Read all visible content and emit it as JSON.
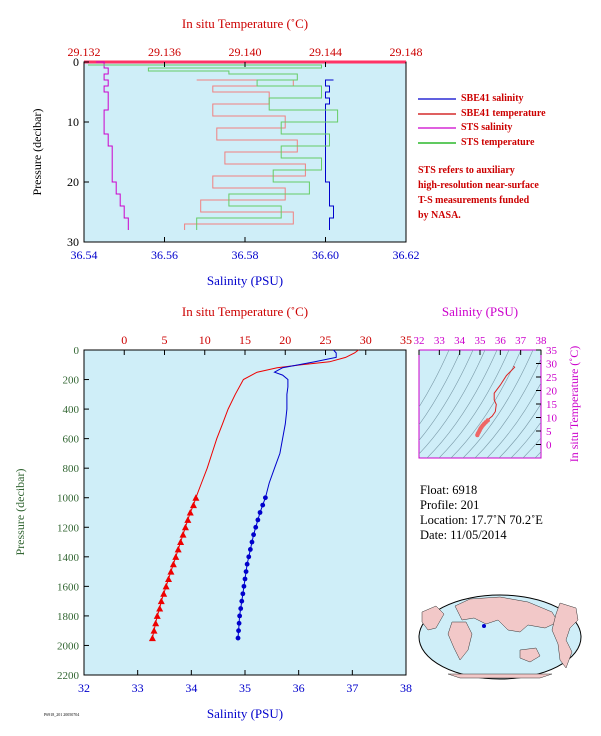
{
  "chart_data": [
    {
      "type": "line",
      "panel": "top-profile",
      "top_axis": {
        "label": "In situ Temperature (˚C)",
        "range": [
          29.132,
          29.148
        ],
        "ticks": [
          "29.132",
          "29.136",
          "29.140",
          "29.144",
          "29.148"
        ]
      },
      "bottom_axis": {
        "label": "Salinity (PSU)",
        "range": [
          36.54,
          36.62
        ],
        "ticks": [
          "36.54",
          "36.56",
          "36.58",
          "36.60",
          "36.62"
        ]
      },
      "y_axis": {
        "label": "Pressure (decibar)",
        "range": [
          0,
          30
        ],
        "reversed": true,
        "ticks": [
          "0",
          "10",
          "20",
          "30"
        ]
      },
      "grid": false,
      "legend_position": "right",
      "series": [
        {
          "name": "SBE41 salinity",
          "color": "#0000cc",
          "x_axis": "bottom",
          "points": [
            [
              36.602,
              3
            ],
            [
              36.6,
              4
            ],
            [
              36.601,
              5
            ],
            [
              36.6,
              6
            ],
            [
              36.601,
              7
            ],
            [
              36.6,
              8
            ],
            [
              36.6,
              10
            ],
            [
              36.6,
              12
            ],
            [
              36.6,
              14
            ],
            [
              36.6,
              16
            ],
            [
              36.6,
              18
            ],
            [
              36.6,
              20
            ],
            [
              36.601,
              22
            ],
            [
              36.601,
              24
            ],
            [
              36.602,
              26
            ],
            [
              36.601,
              28
            ]
          ]
        },
        {
          "name": "SBE41 temperature",
          "color": "#cc0000",
          "x_axis": "top",
          "points": [
            [
              29.1376,
              3
            ],
            [
              29.1424,
              4
            ],
            [
              29.1384,
              5
            ],
            [
              29.1412,
              7
            ],
            [
              29.1384,
              9
            ],
            [
              29.142,
              11
            ],
            [
              29.1386,
              13
            ],
            [
              29.1426,
              15
            ],
            [
              29.139,
              17
            ],
            [
              29.143,
              19
            ],
            [
              29.1384,
              21
            ],
            [
              29.142,
              23
            ],
            [
              29.1378,
              25
            ],
            [
              29.1424,
              27
            ],
            [
              29.137,
              28
            ]
          ]
        },
        {
          "name": "STS salinity",
          "color": "#cc00cc",
          "x_axis": "bottom",
          "points": [
            [
              36.543,
              0
            ],
            [
              36.545,
              1
            ],
            [
              36.546,
              2
            ],
            [
              36.545,
              3
            ],
            [
              36.546,
              4
            ],
            [
              36.545,
              5
            ],
            [
              36.546,
              6
            ],
            [
              36.546,
              8
            ],
            [
              36.545,
              10
            ],
            [
              36.545,
              12
            ],
            [
              36.546,
              14
            ],
            [
              36.547,
              16
            ],
            [
              36.547,
              18
            ],
            [
              36.547,
              20
            ],
            [
              36.548,
              22
            ],
            [
              36.549,
              24
            ],
            [
              36.55,
              26
            ],
            [
              36.551,
              28
            ]
          ]
        },
        {
          "name": "STS temperature",
          "color": "#00aa00",
          "x_axis": "top",
          "points": [
            [
              29.1322,
              0.5
            ],
            [
              29.1438,
              1
            ],
            [
              29.1352,
              1.5
            ],
            [
              29.1392,
              2
            ],
            [
              29.1426,
              3
            ],
            [
              29.1406,
              4
            ],
            [
              29.1438,
              6
            ],
            [
              29.1412,
              8
            ],
            [
              29.1446,
              10
            ],
            [
              29.1418,
              12
            ],
            [
              29.1442,
              14
            ],
            [
              29.1418,
              16
            ],
            [
              29.1438,
              18
            ],
            [
              29.1414,
              20
            ],
            [
              29.1432,
              22
            ],
            [
              29.1392,
              24
            ],
            [
              29.1418,
              26
            ],
            [
              29.1376,
              28
            ]
          ]
        }
      ]
    },
    {
      "type": "line",
      "panel": "full-profile",
      "top_axis": {
        "label": "In situ Temperature (˚C)",
        "range": [
          -5,
          35
        ],
        "ticks": [
          "0",
          "5",
          "10",
          "15",
          "20",
          "25",
          "30",
          "35"
        ]
      },
      "bottom_axis": {
        "label": "Salinity (PSU)",
        "range": [
          32,
          38
        ],
        "ticks": [
          "32",
          "33",
          "34",
          "35",
          "36",
          "37",
          "38"
        ]
      },
      "y_axis": {
        "label": "Pressure (decibar)",
        "range": [
          0,
          2200
        ],
        "reversed": true,
        "ticks": [
          "0",
          "200",
          "400",
          "600",
          "800",
          "1000",
          "1200",
          "1400",
          "1600",
          "1800",
          "2000",
          "2200"
        ]
      },
      "grid": false,
      "series": [
        {
          "name": "Temperature",
          "color": "#ee0000",
          "x_axis": "top",
          "marker": "triangle",
          "points": [
            [
              29.1,
              0
            ],
            [
              28.6,
              20
            ],
            [
              27.5,
              50
            ],
            [
              25.5,
              80
            ],
            [
              22,
              100
            ],
            [
              19,
              120
            ],
            [
              16.5,
              150
            ],
            [
              14.8,
              200
            ],
            [
              13.8,
              300
            ],
            [
              12.9,
              400
            ],
            [
              12.2,
              500
            ],
            [
              11.5,
              600
            ],
            [
              10.9,
              700
            ],
            [
              10.3,
              800
            ],
            [
              9.6,
              900
            ],
            [
              8.9,
              1000
            ],
            [
              8.6,
              1050
            ],
            [
              8.2,
              1100
            ],
            [
              7.9,
              1150
            ],
            [
              7.6,
              1200
            ],
            [
              7.3,
              1250
            ],
            [
              7,
              1300
            ],
            [
              6.7,
              1350
            ],
            [
              6.4,
              1400
            ],
            [
              6.1,
              1450
            ],
            [
              5.8,
              1500
            ],
            [
              5.5,
              1550
            ],
            [
              5.2,
              1600
            ],
            [
              4.9,
              1650
            ],
            [
              4.6,
              1700
            ],
            [
              4.4,
              1750
            ],
            [
              4.1,
              1800
            ],
            [
              3.9,
              1850
            ],
            [
              3.7,
              1900
            ],
            [
              3.5,
              1950
            ]
          ]
        },
        {
          "name": "Salinity",
          "color": "#0000cc",
          "x_axis": "bottom",
          "marker": "circle",
          "points": [
            [
              36.65,
              0
            ],
            [
              36.7,
              20
            ],
            [
              36.7,
              50
            ],
            [
              36.3,
              80
            ],
            [
              36.0,
              100
            ],
            [
              35.7,
              120
            ],
            [
              35.55,
              150
            ],
            [
              35.7,
              170
            ],
            [
              35.8,
              200
            ],
            [
              35.8,
              250
            ],
            [
              35.78,
              300
            ],
            [
              35.78,
              400
            ],
            [
              35.75,
              500
            ],
            [
              35.7,
              600
            ],
            [
              35.65,
              700
            ],
            [
              35.55,
              800
            ],
            [
              35.45,
              900
            ],
            [
              35.38,
              1000
            ],
            [
              35.33,
              1050
            ],
            [
              35.28,
              1100
            ],
            [
              35.24,
              1150
            ],
            [
              35.2,
              1200
            ],
            [
              35.16,
              1250
            ],
            [
              35.13,
              1300
            ],
            [
              35.1,
              1350
            ],
            [
              35.07,
              1400
            ],
            [
              35.04,
              1450
            ],
            [
              35.02,
              1500
            ],
            [
              35,
              1550
            ],
            [
              34.98,
              1600
            ],
            [
              34.96,
              1650
            ],
            [
              34.94,
              1700
            ],
            [
              34.92,
              1750
            ],
            [
              34.9,
              1800
            ],
            [
              34.89,
              1850
            ],
            [
              34.88,
              1900
            ],
            [
              34.87,
              1950
            ]
          ]
        }
      ]
    },
    {
      "type": "scatter",
      "panel": "ts-diagram",
      "top_axis": {
        "label": "Salinity (PSU)",
        "range": [
          32,
          38
        ],
        "ticks": [
          "32",
          "33",
          "34",
          "35",
          "36",
          "37",
          "38"
        ]
      },
      "right_axis": {
        "label": "In situ Temperature (˚C)",
        "range": [
          -5,
          35
        ],
        "ticks": [
          "0",
          "5",
          "10",
          "15",
          "20",
          "25",
          "30",
          "35"
        ]
      },
      "series": [
        {
          "name": "T-S",
          "color": "#dd2222",
          "points": [
            [
              36.65,
              29
            ],
            [
              36.7,
              28.6
            ],
            [
              36.3,
              25.5
            ],
            [
              36,
              22
            ],
            [
              35.7,
              19
            ],
            [
              35.7,
              16.5
            ],
            [
              35.8,
              14.8
            ],
            [
              35.78,
              13.8
            ],
            [
              35.75,
              12.2
            ],
            [
              35.6,
              10.5
            ],
            [
              35.45,
              9.6
            ],
            [
              35.38,
              8.9
            ],
            [
              35.28,
              8.2
            ],
            [
              35.2,
              7.6
            ],
            [
              35.13,
              7
            ],
            [
              35.07,
              6.4
            ],
            [
              35.02,
              5.8
            ],
            [
              34.98,
              5.2
            ],
            [
              34.94,
              4.6
            ],
            [
              34.9,
              4.1
            ],
            [
              34.87,
              3.5
            ]
          ]
        }
      ]
    }
  ],
  "legend": [
    {
      "label": "SBE41 salinity",
      "color": "#0000cc"
    },
    {
      "label": "SBE41 temperature",
      "color": "#cc0000"
    },
    {
      "label": "STS salinity",
      "color": "#cc00cc"
    },
    {
      "label": "STS temperature",
      "color": "#00aa00"
    }
  ],
  "note": [
    "STS refers to auxiliary",
    "high-resolution near-surface",
    "T-S measurements funded",
    "by NASA."
  ],
  "info": {
    "float": "Float:  6918",
    "profile": "Profile:  201",
    "location": "Location:  17.7˚N  70.2˚E",
    "date": "Date:  11/05/2014"
  },
  "file_id": "P6918_201 20050704",
  "colors": {
    "plot_bg": "#cfeef8",
    "temp": "#cc0000",
    "sal": "#0000cc",
    "ts_axis": "#cc00cc",
    "land": "#f2c8c8",
    "ocean": "#cfeef8"
  }
}
